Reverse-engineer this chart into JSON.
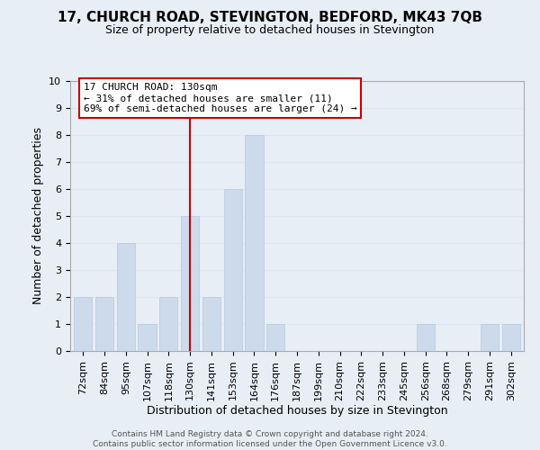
{
  "title_line1": "17, CHURCH ROAD, STEVINGTON, BEDFORD, MK43 7QB",
  "title_line2": "Size of property relative to detached houses in Stevington",
  "xlabel": "Distribution of detached houses by size in Stevington",
  "ylabel": "Number of detached properties",
  "bar_labels": [
    "72sqm",
    "84sqm",
    "95sqm",
    "107sqm",
    "118sqm",
    "130sqm",
    "141sqm",
    "153sqm",
    "164sqm",
    "176sqm",
    "187sqm",
    "199sqm",
    "210sqm",
    "222sqm",
    "233sqm",
    "245sqm",
    "256sqm",
    "268sqm",
    "279sqm",
    "291sqm",
    "302sqm"
  ],
  "bar_values": [
    2,
    2,
    4,
    1,
    2,
    5,
    2,
    6,
    8,
    1,
    0,
    0,
    0,
    0,
    0,
    0,
    1,
    0,
    0,
    1,
    1
  ],
  "bar_color": "#ccdaec",
  "bar_edge_color": "#b8c9de",
  "reference_line_index": 5,
  "annotation_title": "17 CHURCH ROAD: 130sqm",
  "annotation_line1": "← 31% of detached houses are smaller (11)",
  "annotation_line2": "69% of semi-detached houses are larger (24) →",
  "annotation_box_facecolor": "#ffffff",
  "annotation_box_edgecolor": "#cc0000",
  "ref_line_color": "#cc0000",
  "footer_line1": "Contains HM Land Registry data © Crown copyright and database right 2024.",
  "footer_line2": "Contains public sector information licensed under the Open Government Licence v3.0.",
  "ylim": [
    0,
    10
  ],
  "yticks": [
    0,
    1,
    2,
    3,
    4,
    5,
    6,
    7,
    8,
    9,
    10
  ],
  "grid_color": "#dce6f0",
  "bg_color": "#e8eef5",
  "title1_fontsize": 11,
  "title2_fontsize": 9,
  "xlabel_fontsize": 9,
  "ylabel_fontsize": 9,
  "tick_fontsize": 8,
  "footer_fontsize": 6.5
}
